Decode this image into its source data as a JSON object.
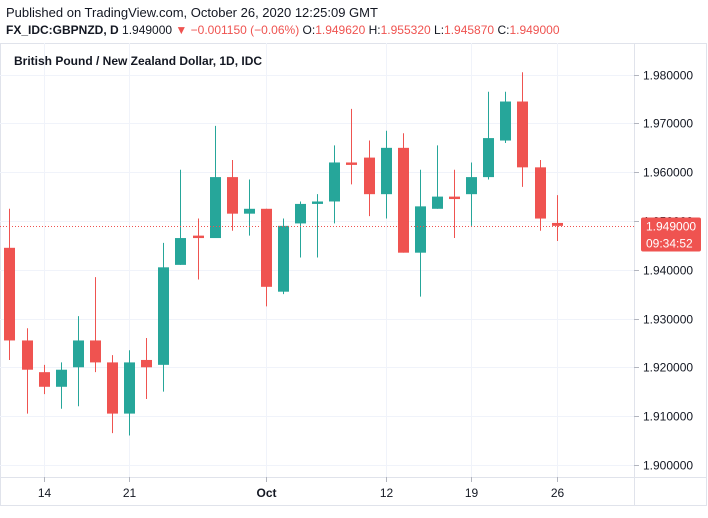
{
  "header": {
    "published": "Published on TradingView.com, October 26, 2020 12:25:09 GMT",
    "symbol": "FX_IDC:GBPNZD, D",
    "last": "1.949000",
    "change": "−0.001150 (−0.06%)",
    "open_label": "O:",
    "open": "1.949620",
    "high_label": "H:",
    "high": "1.955320",
    "low_label": "L:",
    "low": "1.945870",
    "close_label": "C:",
    "close": "1.949000"
  },
  "colors": {
    "up": "#26a69a",
    "down": "#ef5350",
    "grid": "#f0f3fa",
    "axis": "#e0e3eb",
    "text": "#131722"
  },
  "chart_data": {
    "type": "candlestick",
    "title": "British Pound / New Zealand Dollar, 1D, IDC",
    "ylim": [
      1.8975,
      1.9865
    ],
    "y_ticks": [
      "1.980000",
      "1.970000",
      "1.960000",
      "1.950000",
      "1.940000",
      "1.930000",
      "1.920000",
      "1.910000",
      "1.900000"
    ],
    "x_ticks": [
      {
        "label": "14",
        "index": 2,
        "bold": false
      },
      {
        "label": "21",
        "index": 7,
        "bold": false
      },
      {
        "label": "Oct",
        "index": 15,
        "bold": true
      },
      {
        "label": "12",
        "index": 22,
        "bold": false
      },
      {
        "label": "19",
        "index": 27,
        "bold": false
      },
      {
        "label": "26",
        "index": 32,
        "bold": false
      }
    ],
    "last_price": "1.949000",
    "countdown": "09:34:52",
    "candles": [
      {
        "o": 1.9445,
        "h": 1.9525,
        "l": 1.9215,
        "c": 1.9255
      },
      {
        "o": 1.9255,
        "h": 1.928,
        "l": 1.9105,
        "c": 1.9195
      },
      {
        "o": 1.919,
        "h": 1.9205,
        "l": 1.9145,
        "c": 1.916
      },
      {
        "o": 1.916,
        "h": 1.921,
        "l": 1.9115,
        "c": 1.9195
      },
      {
        "o": 1.92,
        "h": 1.9305,
        "l": 1.912,
        "c": 1.9255
      },
      {
        "o": 1.9255,
        "h": 1.9385,
        "l": 1.919,
        "c": 1.921
      },
      {
        "o": 1.921,
        "h": 1.9225,
        "l": 1.9065,
        "c": 1.9105
      },
      {
        "o": 1.9105,
        "h": 1.9235,
        "l": 1.906,
        "c": 1.921
      },
      {
        "o": 1.9215,
        "h": 1.926,
        "l": 1.9135,
        "c": 1.92
      },
      {
        "o": 1.9205,
        "h": 1.9455,
        "l": 1.915,
        "c": 1.9405
      },
      {
        "o": 1.941,
        "h": 1.9605,
        "l": 1.941,
        "c": 1.9465
      },
      {
        "o": 1.947,
        "h": 1.9505,
        "l": 1.938,
        "c": 1.9465
      },
      {
        "o": 1.9465,
        "h": 1.9695,
        "l": 1.9465,
        "c": 1.959
      },
      {
        "o": 1.959,
        "h": 1.9625,
        "l": 1.948,
        "c": 1.9515
      },
      {
        "o": 1.9515,
        "h": 1.9585,
        "l": 1.947,
        "c": 1.9525
      },
      {
        "o": 1.9525,
        "h": 1.9525,
        "l": 1.9325,
        "c": 1.9365
      },
      {
        "o": 1.9355,
        "h": 1.9505,
        "l": 1.935,
        "c": 1.949
      },
      {
        "o": 1.9495,
        "h": 1.954,
        "l": 1.9425,
        "c": 1.9535
      },
      {
        "o": 1.9535,
        "h": 1.9555,
        "l": 1.9425,
        "c": 1.954
      },
      {
        "o": 1.954,
        "h": 1.9655,
        "l": 1.9495,
        "c": 1.962
      },
      {
        "o": 1.962,
        "h": 1.973,
        "l": 1.9575,
        "c": 1.9615
      },
      {
        "o": 1.963,
        "h": 1.9665,
        "l": 1.951,
        "c": 1.9555
      },
      {
        "o": 1.9555,
        "h": 1.9685,
        "l": 1.9505,
        "c": 1.965
      },
      {
        "o": 1.965,
        "h": 1.968,
        "l": 1.9435,
        "c": 1.9435
      },
      {
        "o": 1.9435,
        "h": 1.9605,
        "l": 1.9345,
        "c": 1.953
      },
      {
        "o": 1.9525,
        "h": 1.9655,
        "l": 1.9525,
        "c": 1.955
      },
      {
        "o": 1.955,
        "h": 1.9605,
        "l": 1.9465,
        "c": 1.9545
      },
      {
        "o": 1.9555,
        "h": 1.962,
        "l": 1.949,
        "c": 1.959
      },
      {
        "o": 1.959,
        "h": 1.9765,
        "l": 1.9585,
        "c": 1.967
      },
      {
        "o": 1.9665,
        "h": 1.9765,
        "l": 1.966,
        "c": 1.9745
      },
      {
        "o": 1.9745,
        "h": 1.9805,
        "l": 1.957,
        "c": 1.961
      },
      {
        "o": 1.961,
        "h": 1.9625,
        "l": 1.948,
        "c": 1.9505
      },
      {
        "o": 1.9496,
        "h": 1.9553,
        "l": 1.9459,
        "c": 1.949
      }
    ]
  }
}
